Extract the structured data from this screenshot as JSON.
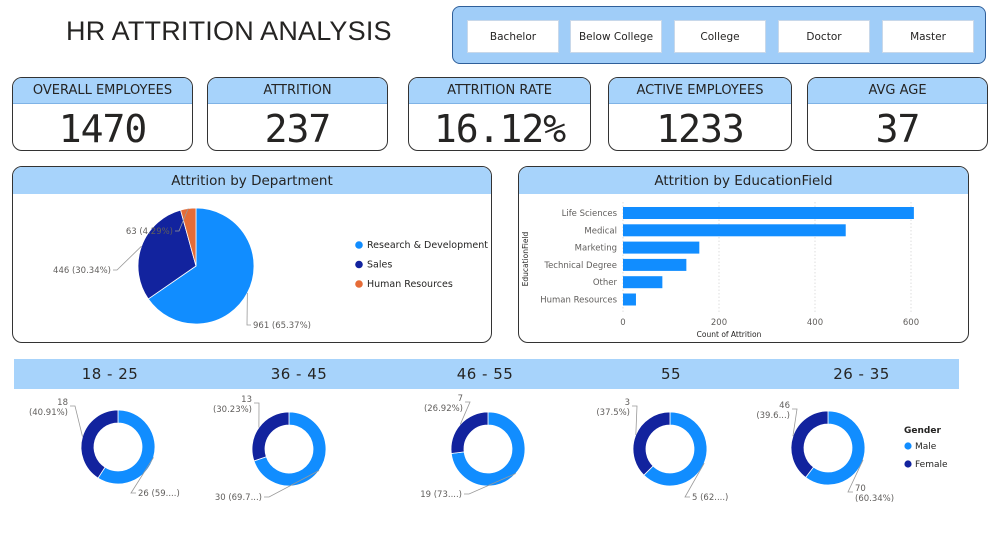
{
  "title": "HR ATTRITION ANALYSIS",
  "slicer": {
    "options": [
      "Bachelor",
      "Below College",
      "College",
      "Doctor",
      "Master"
    ]
  },
  "kpis": [
    {
      "label": "OVERALL EMPLOYEES",
      "value": "1470"
    },
    {
      "label": "ATTRITION",
      "value": "237"
    },
    {
      "label": "ATTRITION RATE",
      "value": "16.12%"
    },
    {
      "label": "ACTIVE EMPLOYEES",
      "value": "1233"
    },
    {
      "label": "AVG AGE",
      "value": "37"
    }
  ],
  "colors": {
    "light_blue": "#118dff",
    "dark_blue": "#12239e",
    "orange": "#e66c37",
    "header": "#a7d3fb"
  },
  "chart_data": [
    {
      "type": "pie",
      "title": "Attrition by Department",
      "slices": [
        {
          "name": "Research & Development",
          "value": 961,
          "label": "961 (65.37%)"
        },
        {
          "name": "Sales",
          "value": 446,
          "label": "446 (30.34%)"
        },
        {
          "name": "Human Resources",
          "value": 63,
          "label": "63 (4.29%)"
        }
      ],
      "legend": "right"
    },
    {
      "type": "bar",
      "orientation": "horizontal",
      "title": "Attrition by EducationField",
      "categories": [
        "Life Sciences",
        "Medical",
        "Marketing",
        "Technical Degree",
        "Other",
        "Human Resources"
      ],
      "values": [
        606,
        464,
        159,
        132,
        82,
        27
      ],
      "xlabel": "Count of Attrition",
      "ylabel": "EducationField",
      "xlim": [
        0,
        650
      ],
      "xticks": [
        0,
        200,
        400,
        600
      ],
      "grid": true
    },
    {
      "type": "donut",
      "title": "18 - 25",
      "slices": [
        {
          "name": "Male",
          "value": 26,
          "label": "26 (59....)"
        },
        {
          "name": "Female",
          "value": 18,
          "label": "18\n(40.91%)"
        }
      ]
    },
    {
      "type": "donut",
      "title": "36 - 45",
      "slices": [
        {
          "name": "Male",
          "value": 30,
          "label": "30 (69.7...)"
        },
        {
          "name": "Female",
          "value": 13,
          "label": "13\n(30.23%)"
        }
      ]
    },
    {
      "type": "donut",
      "title": "46 - 55",
      "slices": [
        {
          "name": "Male",
          "value": 19,
          "label": "19 (73....)"
        },
        {
          "name": "Female",
          "value": 7,
          "label": "7\n(26.92%)"
        }
      ]
    },
    {
      "type": "donut",
      "title": "55",
      "slices": [
        {
          "name": "Male",
          "value": 5,
          "label": "5 (62....)"
        },
        {
          "name": "Female",
          "value": 3,
          "label": "3\n(37.5%)"
        }
      ]
    },
    {
      "type": "donut",
      "title": "26 - 35",
      "slices": [
        {
          "name": "Male",
          "value": 70,
          "label": "70\n(60.34%)"
        },
        {
          "name": "Female",
          "value": 46,
          "label": "46\n(39.6...)"
        }
      ],
      "legend": {
        "title": "Gender",
        "entries": [
          "Male",
          "Female"
        ]
      }
    }
  ]
}
